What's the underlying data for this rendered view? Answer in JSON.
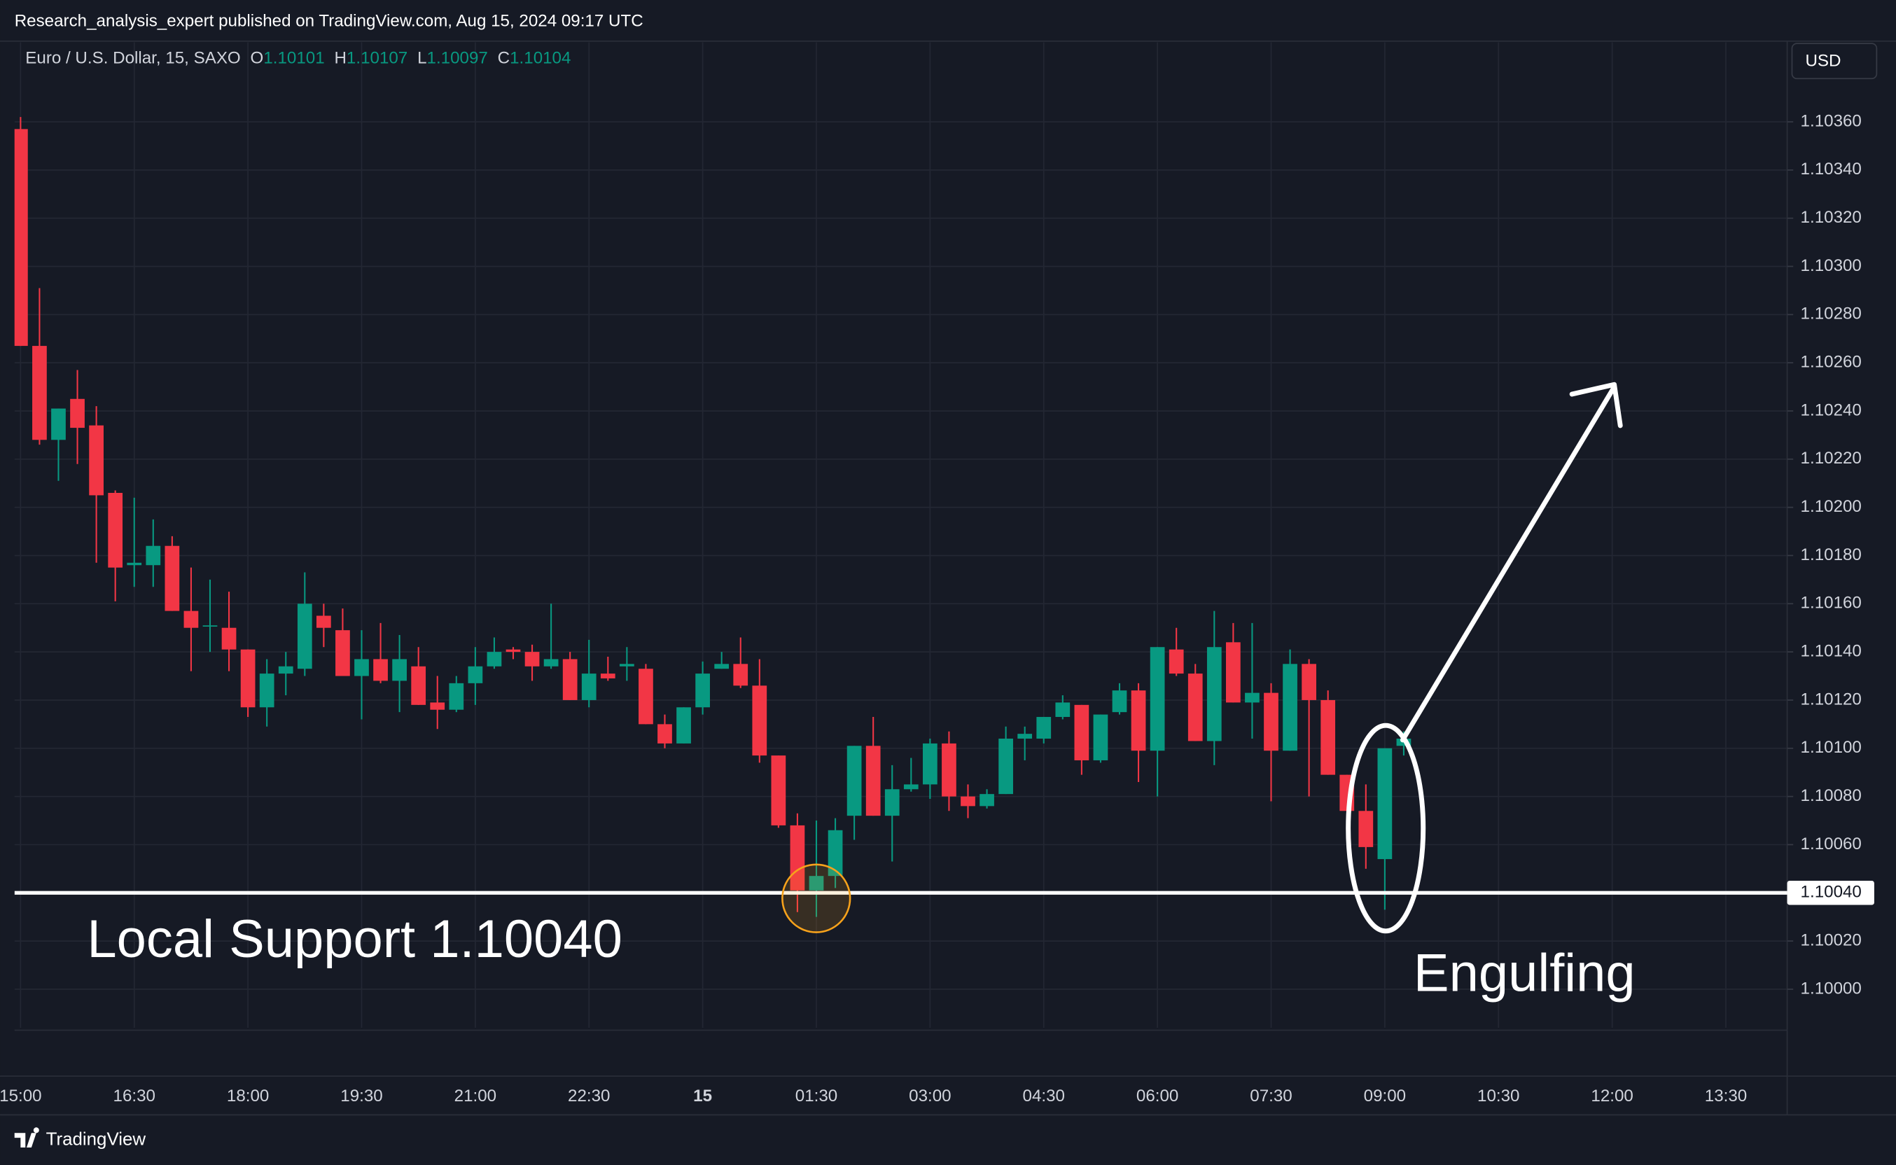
{
  "header": "Research_analysis_expert published on TradingView.com, Aug 15, 2024 09:17 UTC",
  "legend": {
    "symbol": "Euro / U.S. Dollar, 15, SAXO",
    "ohlc": [
      {
        "key": "O",
        "value": "1.10101"
      },
      {
        "key": "H",
        "value": "1.10107"
      },
      {
        "key": "L",
        "value": "1.10097"
      },
      {
        "key": "C",
        "value": "1.10104"
      }
    ]
  },
  "currency_button": "USD",
  "footer": "TradingView",
  "chart_data": {
    "type": "candlestick",
    "categories": [
      "15:00",
      null,
      null,
      null,
      null,
      null,
      "16:30",
      null,
      null,
      null,
      null,
      null,
      "18:00",
      null,
      null,
      null,
      null,
      null,
      "19:30",
      null,
      null,
      null,
      null,
      null,
      "21:00",
      null,
      null,
      null,
      null,
      null,
      "22:30",
      null,
      null,
      null,
      null,
      null,
      "15",
      null,
      null,
      null,
      null,
      null,
      "01:30",
      null,
      null,
      null,
      null,
      null,
      "03:00",
      null,
      null,
      null,
      null,
      null,
      "04:30",
      null,
      null,
      null,
      null,
      null,
      "06:00",
      null,
      null,
      null,
      null,
      null,
      "07:30",
      null,
      null,
      null,
      null,
      null,
      "09:00",
      null,
      null,
      null,
      null,
      null,
      "10:30",
      null,
      null,
      null,
      null,
      null,
      "12:00",
      null,
      null,
      null,
      null,
      null,
      "13:30",
      null,
      null
    ],
    "open": [
      1.10357,
      1.10267,
      1.10228,
      1.10245,
      1.10234,
      1.10206,
      1.10176,
      1.10176,
      1.10184,
      1.10157,
      1.10151,
      1.1015,
      1.10141,
      1.10117,
      1.10131,
      1.10133,
      1.10155,
      1.10149,
      1.1013,
      1.10137,
      1.10128,
      1.10134,
      1.10119,
      1.10116,
      1.10127,
      1.10134,
      1.10141,
      1.1014,
      1.10134,
      1.10137,
      1.1012,
      1.10131,
      1.10134,
      1.10133,
      1.1011,
      1.10102,
      1.10117,
      1.10133,
      1.10135,
      1.10126,
      1.10097,
      1.10068,
      1.10041,
      1.10047,
      1.10072,
      1.10101,
      1.10072,
      1.10083,
      1.10085,
      1.10102,
      1.1008,
      1.10076,
      1.10081,
      1.10104,
      1.10104,
      1.10113,
      1.10118,
      1.10095,
      1.10115,
      1.10124,
      1.10099,
      1.10141,
      1.10131,
      1.10103,
      1.10144,
      1.10119,
      1.10123,
      1.10099,
      1.10135,
      1.1012,
      1.10089,
      1.10074,
      1.10054,
      1.10101,
      null,
      null,
      null,
      null,
      null,
      null,
      null,
      null,
      null,
      null,
      null,
      null,
      null,
      null,
      null,
      null,
      null,
      null,
      null
    ],
    "high": [
      1.10362,
      1.10291,
      1.10241,
      1.10257,
      1.10242,
      1.10207,
      1.10204,
      1.10195,
      1.10188,
      1.10175,
      1.1017,
      1.10165,
      1.10141,
      1.10137,
      1.1014,
      1.10173,
      1.1016,
      1.10158,
      1.10149,
      1.10152,
      1.10147,
      1.10142,
      1.1013,
      1.1013,
      1.10142,
      1.10146,
      1.10142,
      1.10143,
      1.1016,
      1.1014,
      1.10145,
      1.10138,
      1.10142,
      1.10135,
      1.10114,
      1.10117,
      1.10136,
      1.1014,
      1.10146,
      1.10137,
      1.10097,
      1.10073,
      1.1007,
      1.10071,
      1.10101,
      1.10113,
      1.10093,
      1.10096,
      1.10104,
      1.10107,
      1.10085,
      1.10083,
      1.10109,
      1.10109,
      1.10113,
      1.10122,
      1.10118,
      1.10114,
      1.10127,
      1.10127,
      1.10142,
      1.1015,
      1.10135,
      1.10157,
      1.10152,
      1.10152,
      1.10127,
      1.10141,
      1.10137,
      1.10124,
      1.10089,
      1.10085,
      1.101,
      1.10107,
      null,
      null,
      null,
      null,
      null,
      null,
      null,
      null,
      null,
      null,
      null,
      null,
      null,
      null,
      null,
      null,
      null,
      null,
      null
    ],
    "low": [
      1.10267,
      1.10226,
      1.10211,
      1.10218,
      1.10177,
      1.10161,
      1.10167,
      1.10167,
      1.10157,
      1.10132,
      1.1014,
      1.10132,
      1.10113,
      1.10109,
      1.10122,
      1.1013,
      1.10142,
      1.1013,
      1.10112,
      1.10127,
      1.10115,
      1.10118,
      1.10108,
      1.10115,
      1.10118,
      1.10133,
      1.10137,
      1.10128,
      1.10133,
      1.1012,
      1.10117,
      1.10128,
      1.10128,
      1.1011,
      1.101,
      1.10102,
      1.10114,
      1.10133,
      1.10125,
      1.10094,
      1.10067,
      1.10032,
      1.1003,
      1.10042,
      1.10062,
      1.10072,
      1.10053,
      1.10082,
      1.10079,
      1.10074,
      1.10071,
      1.10075,
      1.10081,
      1.10095,
      1.10102,
      1.10112,
      1.10089,
      1.10094,
      1.10114,
      1.10086,
      1.1008,
      1.1013,
      1.10103,
      1.10093,
      1.10119,
      1.10104,
      1.10078,
      1.10099,
      1.1008,
      1.10089,
      1.10074,
      1.1005,
      1.10033,
      1.10097,
      null,
      null,
      null,
      null,
      null,
      null,
      null,
      null,
      null,
      null,
      null,
      null,
      null,
      null,
      null,
      null,
      null,
      null,
      null
    ],
    "close": [
      1.10267,
      1.10228,
      1.10241,
      1.10233,
      1.10205,
      1.10175,
      1.10177,
      1.10184,
      1.10157,
      1.1015,
      1.10151,
      1.10141,
      1.10117,
      1.10131,
      1.10134,
      1.1016,
      1.1015,
      1.1013,
      1.10137,
      1.10128,
      1.10137,
      1.10118,
      1.10116,
      1.10127,
      1.10134,
      1.1014,
      1.1014,
      1.10134,
      1.10137,
      1.1012,
      1.10131,
      1.10129,
      1.10135,
      1.1011,
      1.10102,
      1.10117,
      1.10131,
      1.10135,
      1.10126,
      1.10097,
      1.10068,
      1.10041,
      1.10047,
      1.10066,
      1.10101,
      1.10072,
      1.10083,
      1.10085,
      1.10102,
      1.1008,
      1.10076,
      1.10081,
      1.10104,
      1.10106,
      1.10113,
      1.10119,
      1.10095,
      1.10114,
      1.10124,
      1.10099,
      1.10142,
      1.10131,
      1.10103,
      1.10142,
      1.10119,
      1.10123,
      1.10099,
      1.10135,
      1.1012,
      1.10089,
      1.10074,
      1.10059,
      1.101,
      1.10104,
      null,
      null,
      null,
      null,
      null,
      null,
      null,
      null,
      null,
      null,
      null,
      null,
      null,
      null,
      null,
      null,
      null,
      null,
      null
    ],
    "up_color": "#089981",
    "down_color": "#f23645",
    "ylim": [
      1.09984,
      1.10393
    ],
    "yticks": [
      {
        "value": 1.1,
        "label": "1.10000"
      },
      {
        "value": 1.1002,
        "label": "1.10020"
      },
      {
        "value": 1.1004,
        "label": "1.10040"
      },
      {
        "value": 1.1006,
        "label": "1.10060"
      },
      {
        "value": 1.1008,
        "label": "1.10080"
      },
      {
        "value": 1.101,
        "label": "1.10100"
      },
      {
        "value": 1.1012,
        "label": "1.10120"
      },
      {
        "value": 1.1014,
        "label": "1.10140"
      },
      {
        "value": 1.1016,
        "label": "1.10160"
      },
      {
        "value": 1.1018,
        "label": "1.10180"
      },
      {
        "value": 1.102,
        "label": "1.10200"
      },
      {
        "value": 1.1022,
        "label": "1.10220"
      },
      {
        "value": 1.1024,
        "label": "1.10240"
      },
      {
        "value": 1.1026,
        "label": "1.10260"
      },
      {
        "value": 1.1028,
        "label": "1.10280"
      },
      {
        "value": 1.103,
        "label": "1.10300"
      },
      {
        "value": 1.1032,
        "label": "1.10320"
      },
      {
        "value": 1.1034,
        "label": "1.10340"
      },
      {
        "value": 1.1036,
        "label": "1.10360"
      }
    ],
    "grid": true,
    "support": {
      "value": 1.1004,
      "label": "1.10040"
    },
    "annotations": [
      "Local Support 1.10040",
      "Engulfing"
    ]
  }
}
